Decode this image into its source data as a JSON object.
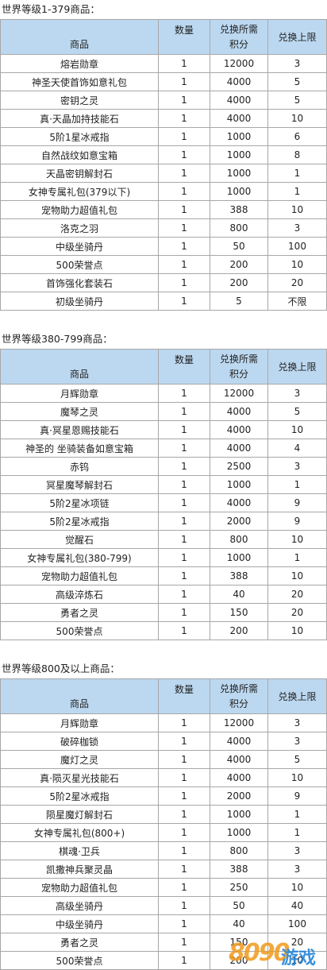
{
  "headers": {
    "name": "商品",
    "qty": "数量",
    "cost": "兑换所需积分",
    "limit": "兑换上限"
  },
  "sections": [
    {
      "title": "世界等级1-379商品：",
      "rows": [
        {
          "name": "熔岩勋章",
          "qty": "1",
          "cost": "12000",
          "limit": "3"
        },
        {
          "name": "神圣天使首饰如意礼包",
          "qty": "1",
          "cost": "4000",
          "limit": "5"
        },
        {
          "name": "密钥之灵",
          "qty": "1",
          "cost": "4000",
          "limit": "5"
        },
        {
          "name": "真·天晶加持技能石",
          "qty": "1",
          "cost": "4000",
          "limit": "10"
        },
        {
          "name": "5阶1星冰戒指",
          "qty": "1",
          "cost": "1000",
          "limit": "6"
        },
        {
          "name": "自然战纹如意宝箱",
          "qty": "1",
          "cost": "1000",
          "limit": "8"
        },
        {
          "name": "天晶密钥解封石",
          "qty": "1",
          "cost": "1000",
          "limit": "1"
        },
        {
          "name": "女神专属礼包(379以下)",
          "qty": "1",
          "cost": "1000",
          "limit": "1"
        },
        {
          "name": "宠物助力超值礼包",
          "qty": "1",
          "cost": "388",
          "limit": "10"
        },
        {
          "name": "洛克之羽",
          "qty": "1",
          "cost": "800",
          "limit": "3"
        },
        {
          "name": "中级坐骑丹",
          "qty": "1",
          "cost": "50",
          "limit": "100"
        },
        {
          "name": "500荣誉点",
          "qty": "1",
          "cost": "200",
          "limit": "10"
        },
        {
          "name": "首饰强化套装石",
          "qty": "1",
          "cost": "200",
          "limit": "20"
        },
        {
          "name": "初级坐骑丹",
          "qty": "1",
          "cost": "5",
          "limit": "不限"
        }
      ]
    },
    {
      "title": "世界等级380-799商品：",
      "rows": [
        {
          "name": "月辉勋章",
          "qty": "1",
          "cost": "12000",
          "limit": "3"
        },
        {
          "name": "魔琴之灵",
          "qty": "1",
          "cost": "4000",
          "limit": "5"
        },
        {
          "name": "真·冥星恩赐技能石",
          "qty": "1",
          "cost": "4000",
          "limit": "10"
        },
        {
          "name": "神圣的 坐骑装备如意宝箱",
          "qty": "1",
          "cost": "4000",
          "limit": "4"
        },
        {
          "name": "赤钨",
          "qty": "1",
          "cost": "2500",
          "limit": "3"
        },
        {
          "name": "冥星魔琴解封石",
          "qty": "1",
          "cost": "1000",
          "limit": "1"
        },
        {
          "name": "5阶2星冰项链",
          "qty": "1",
          "cost": "4000",
          "limit": "9"
        },
        {
          "name": "5阶2星冰戒指",
          "qty": "1",
          "cost": "2000",
          "limit": "9"
        },
        {
          "name": "觉醒石",
          "qty": "1",
          "cost": "800",
          "limit": "10"
        },
        {
          "name": "女神专属礼包(380-799)",
          "qty": "1",
          "cost": "1000",
          "limit": "1"
        },
        {
          "name": "宠物助力超值礼包",
          "qty": "1",
          "cost": "388",
          "limit": "10"
        },
        {
          "name": "高级淬炼石",
          "qty": "1",
          "cost": "40",
          "limit": "20"
        },
        {
          "name": "勇者之灵",
          "qty": "1",
          "cost": "150",
          "limit": "20"
        },
        {
          "name": "500荣誉点",
          "qty": "1",
          "cost": "200",
          "limit": "10"
        }
      ]
    },
    {
      "title": "世界等级800及以上商品：",
      "rows": [
        {
          "name": "月辉勋章",
          "qty": "1",
          "cost": "12000",
          "limit": "3"
        },
        {
          "name": "破碎枷锁",
          "qty": "1",
          "cost": "4000",
          "limit": "3"
        },
        {
          "name": "魔灯之灵",
          "qty": "1",
          "cost": "4000",
          "limit": "5"
        },
        {
          "name": "真·陨灭星光技能石",
          "qty": "1",
          "cost": "4000",
          "limit": "10"
        },
        {
          "name": "5阶2星冰戒指",
          "qty": "1",
          "cost": "2000",
          "limit": "9"
        },
        {
          "name": "陨星魔灯解封石",
          "qty": "1",
          "cost": "1000",
          "limit": "1"
        },
        {
          "name": "女神专属礼包(800+)",
          "qty": "1",
          "cost": "1000",
          "limit": "1"
        },
        {
          "name": "棋魂·卫兵",
          "qty": "1",
          "cost": "800",
          "limit": "3"
        },
        {
          "name": "凯撒神兵聚灵晶",
          "qty": "1",
          "cost": "388",
          "limit": "3"
        },
        {
          "name": "宠物助力超值礼包",
          "qty": "1",
          "cost": "250",
          "limit": "10"
        },
        {
          "name": "高级坐骑丹",
          "qty": "1",
          "cost": "50",
          "limit": "40"
        },
        {
          "name": "中级坐骑丹",
          "qty": "1",
          "cost": "40",
          "limit": "100"
        },
        {
          "name": "勇者之灵",
          "qty": "1",
          "cost": "150",
          "limit": "20"
        },
        {
          "name": "500荣誉点",
          "qty": "1",
          "cost": "200",
          "limit": "10"
        }
      ]
    }
  ],
  "watermark": {
    "digits": "8090",
    "text": "游戏"
  }
}
